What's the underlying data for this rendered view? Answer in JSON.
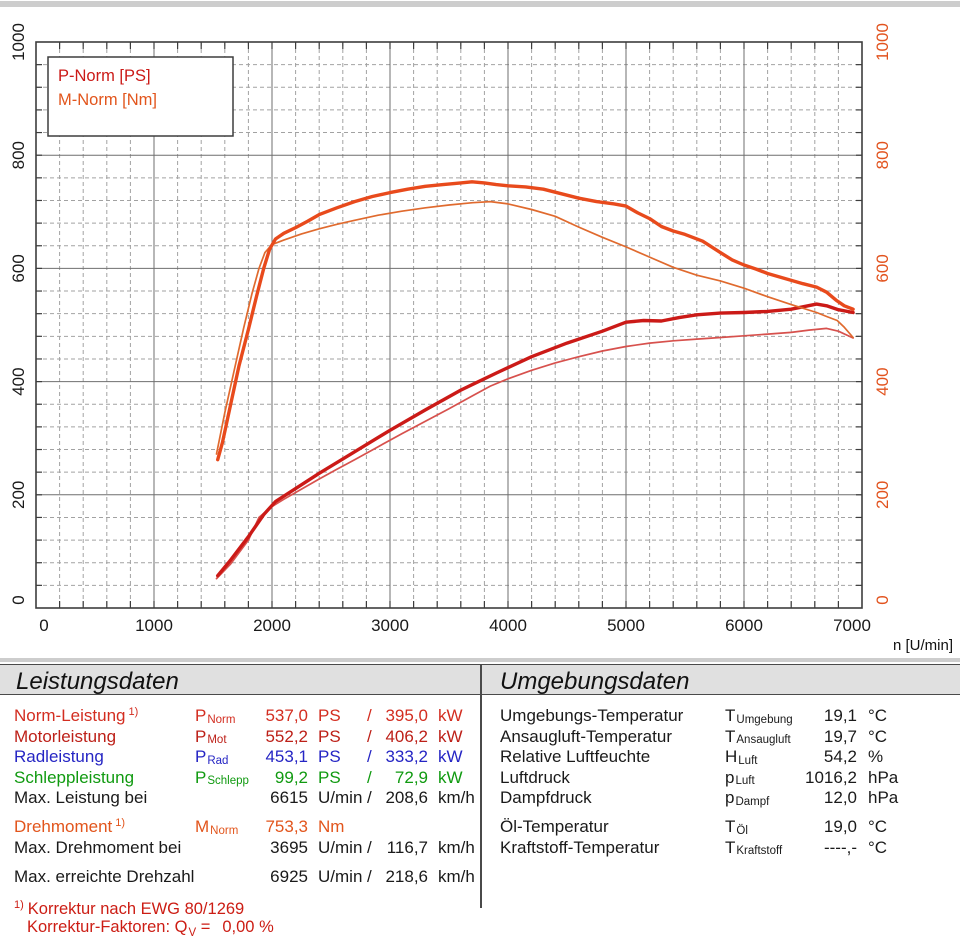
{
  "chart_data": {
    "type": "line",
    "title": "",
    "grid": {
      "major": "solid",
      "minor": "dashed"
    },
    "legend_position": "top-left",
    "legend": [
      {
        "label": "P-Norm [PS]",
        "color": "#cb1a17"
      },
      {
        "label": "M-Norm [Nm]",
        "color": "#e2551c"
      }
    ],
    "x_axis": {
      "label": "n [U/min]",
      "min": 0,
      "max": 7000,
      "major_step": 1000,
      "minor_step": 200,
      "ticks": [
        0,
        1000,
        2000,
        3000,
        4000,
        5000,
        6000,
        7000
      ]
    },
    "y_axis_left": {
      "label": "",
      "min": 0,
      "max": 1000,
      "major_step": 200,
      "minor_step": 40,
      "ticks": [
        0,
        200,
        400,
        600,
        800,
        1000
      ],
      "color": "#1a1a1a"
    },
    "y_axis_right": {
      "label": "",
      "min": 0,
      "max": 1000,
      "major_step": 200,
      "minor_step": 40,
      "ticks": [
        0,
        200,
        400,
        600,
        800,
        1000
      ],
      "color": "#e2531e"
    },
    "series": [
      {
        "id": "p-second-run",
        "name": "P thin",
        "unit": "PS",
        "color": "#d7514d",
        "width": 1.7,
        "points": [
          [
            1530,
            52
          ],
          [
            1650,
            78
          ],
          [
            1800,
            120
          ],
          [
            1890,
            160
          ],
          [
            1990,
            178
          ],
          [
            2100,
            192
          ],
          [
            2250,
            210
          ],
          [
            2400,
            228
          ],
          [
            2550,
            245
          ],
          [
            2700,
            262
          ],
          [
            2900,
            285
          ],
          [
            3100,
            308
          ],
          [
            3300,
            330
          ],
          [
            3500,
            352
          ],
          [
            3700,
            375
          ],
          [
            3850,
            392
          ],
          [
            4000,
            405
          ],
          [
            4200,
            420
          ],
          [
            4400,
            433
          ],
          [
            4600,
            444
          ],
          [
            4800,
            454
          ],
          [
            5000,
            462
          ],
          [
            5200,
            468
          ],
          [
            5400,
            472
          ],
          [
            5600,
            475
          ],
          [
            5800,
            478
          ],
          [
            6000,
            481
          ],
          [
            6200,
            484
          ],
          [
            6400,
            487
          ],
          [
            6550,
            491
          ],
          [
            6700,
            494
          ],
          [
            6800,
            489
          ],
          [
            6925,
            477
          ]
        ]
      },
      {
        "id": "p-norm",
        "name": "P-Norm",
        "unit": "PS",
        "color": "#cb1a17",
        "width": 3.4,
        "points": [
          [
            1540,
            57
          ],
          [
            1650,
            85
          ],
          [
            1800,
            126
          ],
          [
            1930,
            165
          ],
          [
            2030,
            188
          ],
          [
            2200,
            211
          ],
          [
            2400,
            238
          ],
          [
            2700,
            276
          ],
          [
            3000,
            314
          ],
          [
            3300,
            350
          ],
          [
            3600,
            385
          ],
          [
            3900,
            415
          ],
          [
            4200,
            444
          ],
          [
            4500,
            468
          ],
          [
            4800,
            489
          ],
          [
            5000,
            505
          ],
          [
            5150,
            508
          ],
          [
            5300,
            507
          ],
          [
            5450,
            513
          ],
          [
            5600,
            518
          ],
          [
            5800,
            521
          ],
          [
            6000,
            522
          ],
          [
            6200,
            524
          ],
          [
            6400,
            528
          ],
          [
            6615,
            537
          ],
          [
            6700,
            534
          ],
          [
            6800,
            527
          ],
          [
            6925,
            522
          ]
        ]
      },
      {
        "id": "m-second-run",
        "name": "M thin",
        "unit": "Nm",
        "color": "#e06a2e",
        "width": 1.7,
        "points": [
          [
            1530,
            272
          ],
          [
            1600,
            345
          ],
          [
            1680,
            420
          ],
          [
            1760,
            495
          ],
          [
            1830,
            555
          ],
          [
            1890,
            600
          ],
          [
            1940,
            628
          ],
          [
            2000,
            642
          ],
          [
            2100,
            650
          ],
          [
            2250,
            661
          ],
          [
            2400,
            670
          ],
          [
            2550,
            678
          ],
          [
            2700,
            685
          ],
          [
            2900,
            694
          ],
          [
            3100,
            701
          ],
          [
            3300,
            707
          ],
          [
            3500,
            712
          ],
          [
            3700,
            716
          ],
          [
            3850,
            718
          ],
          [
            4000,
            714
          ],
          [
            4200,
            704
          ],
          [
            4400,
            692
          ],
          [
            4600,
            673
          ],
          [
            4800,
            655
          ],
          [
            5000,
            638
          ],
          [
            5200,
            620
          ],
          [
            5400,
            602
          ],
          [
            5600,
            588
          ],
          [
            5800,
            578
          ],
          [
            6000,
            565
          ],
          [
            6200,
            550
          ],
          [
            6400,
            536
          ],
          [
            6615,
            522
          ],
          [
            6700,
            515
          ],
          [
            6790,
            508
          ],
          [
            6850,
            496
          ],
          [
            6925,
            478
          ]
        ]
      },
      {
        "id": "m-norm",
        "name": "M-Norm",
        "unit": "Nm",
        "color": "#e84a1c",
        "width": 3.4,
        "points": [
          [
            1540,
            262
          ],
          [
            1580,
            292
          ],
          [
            1650,
            360
          ],
          [
            1720,
            428
          ],
          [
            1800,
            492
          ],
          [
            1870,
            552
          ],
          [
            1930,
            600
          ],
          [
            1980,
            634
          ],
          [
            2030,
            652
          ],
          [
            2100,
            662
          ],
          [
            2200,
            672
          ],
          [
            2300,
            683
          ],
          [
            2400,
            695
          ],
          [
            2550,
            707
          ],
          [
            2700,
            718
          ],
          [
            2850,
            727
          ],
          [
            3000,
            734
          ],
          [
            3150,
            740
          ],
          [
            3300,
            745
          ],
          [
            3450,
            748
          ],
          [
            3600,
            751
          ],
          [
            3695,
            753
          ],
          [
            3800,
            751
          ],
          [
            3900,
            748
          ],
          [
            4000,
            746
          ],
          [
            4150,
            744
          ],
          [
            4300,
            740
          ],
          [
            4450,
            732
          ],
          [
            4600,
            724
          ],
          [
            4750,
            718
          ],
          [
            4900,
            714
          ],
          [
            5000,
            710
          ],
          [
            5100,
            698
          ],
          [
            5200,
            688
          ],
          [
            5300,
            674
          ],
          [
            5400,
            666
          ],
          [
            5500,
            660
          ],
          [
            5650,
            648
          ],
          [
            5800,
            628
          ],
          [
            5900,
            615
          ],
          [
            6000,
            606
          ],
          [
            6100,
            599
          ],
          [
            6200,
            591
          ],
          [
            6350,
            582
          ],
          [
            6500,
            573
          ],
          [
            6615,
            567
          ],
          [
            6700,
            558
          ],
          [
            6780,
            544
          ],
          [
            6850,
            534
          ],
          [
            6925,
            528
          ]
        ]
      }
    ]
  },
  "leistungsdaten": {
    "title": "Leistungsdaten",
    "rows": [
      {
        "label": "Norm-Leistung",
        "sup": "1)",
        "sym": "P",
        "sub": "Norm",
        "v1": "537,0",
        "u1": "PS",
        "sep": "/",
        "v2": "395,0",
        "u2": "kW",
        "color": "#d32d20",
        "gap": false
      },
      {
        "label": "Motorleistung",
        "sup": "",
        "sym": "P",
        "sub": "Mot",
        "v1": "552,2",
        "u1": "PS",
        "sep": "/",
        "v2": "406,2",
        "u2": "kW",
        "color": "#bd2018",
        "gap": false
      },
      {
        "label": "Radleistung",
        "sup": "",
        "sym": "P",
        "sub": "Rad",
        "v1": "453,1",
        "u1": "PS",
        "sep": "/",
        "v2": "333,2",
        "u2": "kW",
        "color": "#2525c4",
        "gap": false
      },
      {
        "label": "Schleppleistung",
        "sup": "",
        "sym": "P",
        "sub": "Schlepp",
        "v1": "99,2",
        "u1": "PS",
        "sep": "/",
        "v2": "72,9",
        "u2": "kW",
        "color": "#109a10",
        "gap": false
      },
      {
        "label": "Max. Leistung bei",
        "sup": "",
        "sym": "",
        "sub": "",
        "v1": "6615",
        "u1": "U/min",
        "sep": "/",
        "v2": "208,6",
        "u2": "km/h",
        "color": "#1a1a1a",
        "gap": false
      },
      {
        "label": "Drehmoment",
        "sup": "1)",
        "sym": "M",
        "sub": "Norm",
        "v1": "753,3",
        "u1": "Nm",
        "sep": "",
        "v2": "",
        "u2": "",
        "color": "#e2551c",
        "gap": true
      },
      {
        "label": "Max. Drehmoment bei",
        "sup": "",
        "sym": "",
        "sub": "",
        "v1": "3695",
        "u1": "U/min",
        "sep": "/",
        "v2": "116,7",
        "u2": "km/h",
        "color": "#1a1a1a",
        "gap": false
      },
      {
        "label": "Max. erreichte Drehzahl",
        "sup": "",
        "sym": "",
        "sub": "",
        "v1": "6925",
        "u1": "U/min",
        "sep": "/",
        "v2": "218,6",
        "u2": "km/h",
        "color": "#1a1a1a",
        "gap": true
      }
    ],
    "footnote_sup": "1)",
    "footnote1": "Korrektur nach EWG 80/1269",
    "footnote2_pre": "Korrektur-Faktoren: Q",
    "footnote2_sub": "V",
    "footnote2_eq": " =",
    "footnote2_val": "0,00 %",
    "footnote_color": "#cc1d14"
  },
  "umgebungsdaten": {
    "title": "Umgebungsdaten",
    "rows": [
      {
        "label": "Umgebungs-Temperatur",
        "sym": "T",
        "sub": "Umgebung",
        "val": "19,1",
        "unit": "°C",
        "gap": false
      },
      {
        "label": "Ansaugluft-Temperatur",
        "sym": "T",
        "sub": "Ansaugluft",
        "val": "19,7",
        "unit": "°C",
        "gap": false
      },
      {
        "label": "Relative Luftfeuchte",
        "sym": "H",
        "sub": "Luft",
        "val": "54,2",
        "unit": "%",
        "gap": false
      },
      {
        "label": "Luftdruck",
        "sym": "p",
        "sub": "Luft",
        "val": "1016,2",
        "unit": "hPa",
        "gap": false
      },
      {
        "label": "Dampfdruck",
        "sym": "p",
        "sub": "Dampf",
        "val": "12,0",
        "unit": "hPa",
        "gap": false
      },
      {
        "label": "Öl-Temperatur",
        "sym": "T",
        "sub": "Öl",
        "val": "19,0",
        "unit": "°C",
        "gap": true
      },
      {
        "label": "Kraftstoff-Temperatur",
        "sym": "T",
        "sub": "Kraftstoff",
        "val": "----,-",
        "unit": "°C",
        "gap": false
      }
    ]
  }
}
